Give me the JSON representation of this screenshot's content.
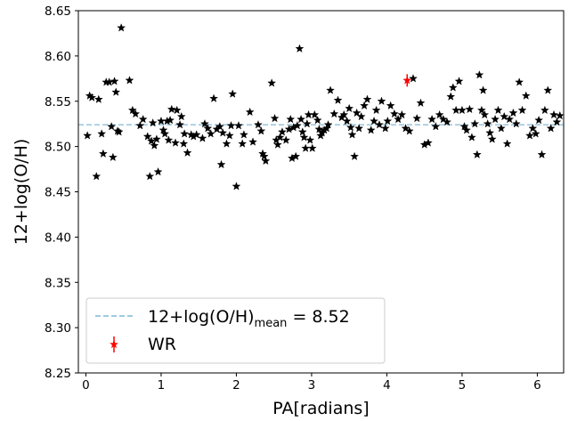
{
  "chart_data": {
    "type": "scatter",
    "xlabel": "PA[radians]",
    "ylabel": "12+log(O/H)",
    "xlim": [
      -0.1,
      6.35
    ],
    "ylim": [
      8.25,
      8.65
    ],
    "xticks": [
      "0",
      "1",
      "2",
      "3",
      "4",
      "5",
      "6"
    ],
    "yticks": [
      "8.25",
      "8.30",
      "8.35",
      "8.40",
      "8.45",
      "8.50",
      "8.55",
      "8.60",
      "8.65"
    ],
    "grid": false,
    "legend_position": "lower-left",
    "mean_line": {
      "value": 8.524,
      "color": "#9ecae1",
      "legend_main": "12+log(O/H)",
      "legend_sub": "mean",
      "legend_suffix": " = 8.52"
    },
    "series": [
      {
        "marker": "star",
        "color": "#000000",
        "points": [
          [
            0.02,
            8.512
          ],
          [
            0.05,
            8.556
          ],
          [
            0.08,
            8.554
          ],
          [
            0.14,
            8.467
          ],
          [
            0.17,
            8.552
          ],
          [
            0.21,
            8.514
          ],
          [
            0.23,
            8.492
          ],
          [
            0.27,
            8.571
          ],
          [
            0.31,
            8.571
          ],
          [
            0.34,
            8.522
          ],
          [
            0.36,
            8.488
          ],
          [
            0.38,
            8.572
          ],
          [
            0.4,
            8.56
          ],
          [
            0.42,
            8.517
          ],
          [
            0.44,
            8.516
          ],
          [
            0.47,
            8.631
          ],
          [
            0.58,
            8.573
          ],
          [
            0.62,
            8.54
          ],
          [
            0.66,
            8.536
          ],
          [
            0.72,
            8.523
          ],
          [
            0.76,
            8.53
          ],
          [
            0.82,
            8.511
          ],
          [
            0.85,
            8.467
          ],
          [
            0.87,
            8.506
          ],
          [
            0.89,
            8.526
          ],
          [
            0.91,
            8.501
          ],
          [
            0.94,
            8.508
          ],
          [
            0.96,
            8.472
          ],
          [
            1.0,
            8.528
          ],
          [
            1.03,
            8.518
          ],
          [
            1.05,
            8.514
          ],
          [
            1.08,
            8.528
          ],
          [
            1.1,
            8.507
          ],
          [
            1.12,
            8.529
          ],
          [
            1.14,
            8.541
          ],
          [
            1.19,
            8.504
          ],
          [
            1.21,
            8.54
          ],
          [
            1.25,
            8.524
          ],
          [
            1.27,
            8.533
          ],
          [
            1.3,
            8.503
          ],
          [
            1.31,
            8.514
          ],
          [
            1.35,
            8.493
          ],
          [
            1.4,
            8.513
          ],
          [
            1.43,
            8.511
          ],
          [
            1.47,
            8.513
          ],
          [
            1.55,
            8.509
          ],
          [
            1.58,
            8.525
          ],
          [
            1.62,
            8.52
          ],
          [
            1.66,
            8.514
          ],
          [
            1.7,
            8.553
          ],
          [
            1.74,
            8.519
          ],
          [
            1.78,
            8.522
          ],
          [
            1.8,
            8.48
          ],
          [
            1.82,
            8.515
          ],
          [
            1.87,
            8.503
          ],
          [
            1.91,
            8.512
          ],
          [
            1.93,
            8.523
          ],
          [
            1.95,
            8.558
          ],
          [
            2.0,
            8.456
          ],
          [
            2.03,
            8.523
          ],
          [
            2.08,
            8.503
          ],
          [
            2.1,
            8.513
          ],
          [
            2.18,
            8.538
          ],
          [
            2.22,
            8.505
          ],
          [
            2.29,
            8.524
          ],
          [
            2.33,
            8.517
          ],
          [
            2.35,
            8.492
          ],
          [
            2.37,
            8.489
          ],
          [
            2.39,
            8.484
          ],
          [
            2.47,
            8.57
          ],
          [
            2.51,
            8.531
          ],
          [
            2.53,
            8.507
          ],
          [
            2.55,
            8.502
          ],
          [
            2.58,
            8.51
          ],
          [
            2.61,
            8.516
          ],
          [
            2.66,
            8.507
          ],
          [
            2.7,
            8.519
          ],
          [
            2.72,
            8.53
          ],
          [
            2.74,
            8.487
          ],
          [
            2.76,
            8.521
          ],
          [
            2.79,
            8.489
          ],
          [
            2.81,
            8.523
          ],
          [
            2.84,
            8.608
          ],
          [
            2.86,
            8.53
          ],
          [
            2.88,
            8.516
          ],
          [
            2.9,
            8.51
          ],
          [
            2.92,
            8.498
          ],
          [
            2.94,
            8.525
          ],
          [
            2.96,
            8.535
          ],
          [
            2.98,
            8.507
          ],
          [
            3.01,
            8.498
          ],
          [
            3.04,
            8.535
          ],
          [
            3.08,
            8.529
          ],
          [
            3.1,
            8.519
          ],
          [
            3.12,
            8.512
          ],
          [
            3.14,
            8.515
          ],
          [
            3.17,
            8.518
          ],
          [
            3.2,
            8.52
          ],
          [
            3.22,
            8.524
          ],
          [
            3.25,
            8.562
          ],
          [
            3.3,
            8.536
          ],
          [
            3.35,
            8.551
          ],
          [
            3.4,
            8.532
          ],
          [
            3.43,
            8.535
          ],
          [
            3.47,
            8.528
          ],
          [
            3.5,
            8.542
          ],
          [
            3.52,
            8.521
          ],
          [
            3.54,
            8.513
          ],
          [
            3.57,
            8.489
          ],
          [
            3.6,
            8.537
          ],
          [
            3.63,
            8.52
          ],
          [
            3.66,
            8.533
          ],
          [
            3.7,
            8.545
          ],
          [
            3.74,
            8.552
          ],
          [
            3.79,
            8.518
          ],
          [
            3.83,
            8.528
          ],
          [
            3.86,
            8.54
          ],
          [
            3.9,
            8.524
          ],
          [
            3.93,
            8.55
          ],
          [
            3.98,
            8.52
          ],
          [
            4.01,
            8.528
          ],
          [
            4.05,
            8.545
          ],
          [
            4.1,
            8.536
          ],
          [
            4.15,
            8.53
          ],
          [
            4.2,
            8.535
          ],
          [
            4.25,
            8.52
          ],
          [
            4.3,
            8.517
          ],
          [
            4.35,
            8.575
          ],
          [
            4.4,
            8.531
          ],
          [
            4.45,
            8.548
          ],
          [
            4.5,
            8.502
          ],
          [
            4.55,
            8.504
          ],
          [
            4.6,
            8.53
          ],
          [
            4.65,
            8.522
          ],
          [
            4.7,
            8.535
          ],
          [
            4.75,
            8.53
          ],
          [
            4.8,
            8.527
          ],
          [
            4.85,
            8.555
          ],
          [
            4.88,
            8.565
          ],
          [
            4.92,
            8.54
          ],
          [
            4.96,
            8.572
          ],
          [
            5.0,
            8.54
          ],
          [
            5.03,
            8.522
          ],
          [
            5.06,
            8.518
          ],
          [
            5.1,
            8.541
          ],
          [
            5.13,
            8.51
          ],
          [
            5.17,
            8.525
          ],
          [
            5.2,
            8.491
          ],
          [
            5.23,
            8.579
          ],
          [
            5.26,
            8.54
          ],
          [
            5.28,
            8.562
          ],
          [
            5.3,
            8.535
          ],
          [
            5.34,
            8.525
          ],
          [
            5.37,
            8.515
          ],
          [
            5.4,
            8.508
          ],
          [
            5.44,
            8.53
          ],
          [
            5.48,
            8.54
          ],
          [
            5.52,
            8.52
          ],
          [
            5.56,
            8.533
          ],
          [
            5.6,
            8.503
          ],
          [
            5.63,
            8.53
          ],
          [
            5.68,
            8.537
          ],
          [
            5.72,
            8.525
          ],
          [
            5.76,
            8.571
          ],
          [
            5.8,
            8.54
          ],
          [
            5.85,
            8.556
          ],
          [
            5.9,
            8.512
          ],
          [
            5.94,
            8.52
          ],
          [
            5.98,
            8.514
          ],
          [
            6.02,
            8.529
          ],
          [
            6.06,
            8.491
          ],
          [
            6.1,
            8.54
          ],
          [
            6.14,
            8.562
          ],
          [
            6.18,
            8.52
          ],
          [
            6.22,
            8.535
          ],
          [
            6.26,
            8.527
          ],
          [
            6.3,
            8.534
          ]
        ]
      },
      {
        "name": "WR",
        "marker": "star",
        "color": "#ff0000",
        "error_bars": true,
        "points": [
          [
            4.27,
            8.573
          ]
        ]
      }
    ]
  }
}
